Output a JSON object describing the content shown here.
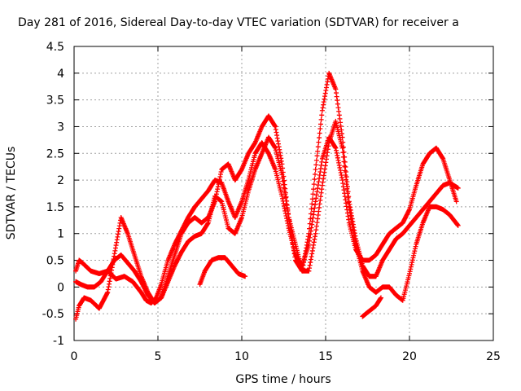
{
  "chart_data": {
    "type": "scatter",
    "title": "Day 281 of 2016, Sidereal Day-to-day VTEC variation (SDTVAR) for receiver a",
    "xlabel": "GPS time / hours",
    "ylabel": "SDTVAR / TECUs",
    "xlim": [
      0,
      25
    ],
    "ylim": [
      -1,
      4.5
    ],
    "xticks": [
      "0",
      "5",
      "10",
      "15",
      "20",
      "25"
    ],
    "yticks": [
      "-1",
      "-0.5",
      "0",
      "0.5",
      "1",
      "1.5",
      "2",
      "2.5",
      "3",
      "3.5",
      "4",
      "4.5"
    ],
    "grid": true,
    "marker": "+",
    "color": "#ff0000",
    "series": [
      {
        "x": [
          0.1,
          0.3,
          0.5,
          1.0,
          1.5,
          2.0,
          2.5,
          3.0,
          3.5,
          4.0,
          4.3,
          4.6,
          4.9,
          5.2,
          5.6,
          6.0,
          6.4,
          6.8,
          7.2,
          7.6,
          8.0,
          8.4,
          8.8,
          9.2,
          9.6,
          10.0,
          10.4,
          10.8,
          11.2,
          11.6,
          12.0,
          12.4,
          12.8,
          13.2,
          13.6,
          14.0,
          14.4,
          14.8,
          15.2,
          15.6,
          16.0,
          16.4,
          16.8,
          17.2,
          17.6,
          18.0,
          18.4,
          18.8,
          19.2,
          19.6,
          20.0,
          20.4,
          20.8,
          21.2,
          21.6,
          22.0,
          22.4,
          22.8
        ],
        "y": [
          0.3,
          0.5,
          0.45,
          0.3,
          0.25,
          0.3,
          0.15,
          0.2,
          0.1,
          -0.1,
          -0.25,
          -0.3,
          -0.2,
          0.05,
          0.5,
          0.8,
          1.05,
          1.3,
          1.5,
          1.65,
          1.8,
          2.0,
          1.95,
          1.6,
          1.3,
          1.6,
          2.0,
          2.5,
          2.7,
          2.5,
          2.2,
          1.7,
          1.1,
          0.6,
          0.4,
          0.8,
          1.6,
          2.4,
          2.8,
          2.6,
          2.0,
          1.2,
          0.7,
          0.5,
          0.5,
          0.6,
          0.8,
          1.0,
          1.1,
          1.2,
          1.45,
          1.9,
          2.3,
          2.5,
          2.6,
          2.4,
          2.0,
          1.6
        ]
      },
      {
        "x": [
          0.1,
          0.4,
          0.8,
          1.2,
          1.6,
          2.0,
          2.4,
          2.8,
          3.2,
          3.6,
          4.0,
          4.4,
          4.8,
          5.2,
          5.6,
          6.0,
          6.4,
          6.8,
          7.2,
          7.6,
          8.0,
          8.4,
          8.8,
          9.2,
          9.6,
          10.0,
          10.4,
          10.8,
          11.2,
          11.6,
          12.0,
          12.4,
          12.8,
          13.2,
          13.6,
          14.0,
          14.4,
          14.8,
          15.2,
          15.6,
          16.0,
          16.4,
          16.8,
          17.2,
          17.6,
          18.0,
          18.4,
          18.8,
          19.2,
          19.6,
          20.0,
          20.4,
          20.8,
          21.2,
          21.6,
          22.0,
          22.4,
          22.9
        ],
        "y": [
          0.1,
          0.05,
          0.0,
          0.0,
          0.1,
          0.3,
          0.5,
          0.6,
          0.45,
          0.3,
          0.1,
          -0.15,
          -0.3,
          -0.2,
          0.2,
          0.6,
          1.0,
          1.2,
          1.3,
          1.2,
          1.3,
          1.6,
          2.2,
          2.3,
          2.0,
          2.2,
          2.5,
          2.7,
          3.0,
          3.2,
          3.0,
          2.3,
          1.3,
          0.5,
          0.3,
          1.0,
          2.2,
          3.3,
          4.0,
          3.7,
          2.8,
          1.6,
          0.9,
          0.4,
          0.2,
          0.2,
          0.5,
          0.7,
          0.9,
          1.0,
          1.15,
          1.3,
          1.45,
          1.6,
          1.75,
          1.9,
          1.95,
          1.85
        ]
      },
      {
        "x": [
          0.1,
          0.3,
          0.6,
          1.0,
          1.5,
          2.0,
          2.8,
          3.2,
          3.6,
          4.0,
          4.4,
          4.8,
          5.2,
          5.6,
          6.0,
          6.4,
          6.8,
          7.2,
          7.6,
          8.0,
          8.4,
          8.8,
          9.2,
          9.6,
          10.0,
          10.4,
          10.8,
          11.2,
          11.6,
          12.0,
          12.4,
          12.8,
          13.2,
          13.6,
          14.0,
          14.4,
          14.8,
          15.2,
          15.6,
          16.0,
          16.4,
          16.8,
          17.2,
          17.6,
          18.0,
          18.4,
          18.8,
          19.2,
          19.6,
          20.0,
          20.4,
          20.8,
          21.2,
          21.6,
          22.0,
          22.4,
          22.9
        ],
        "y": [
          -0.6,
          -0.35,
          -0.2,
          -0.25,
          -0.4,
          -0.1,
          1.3,
          1.0,
          0.6,
          0.2,
          -0.1,
          -0.3,
          -0.2,
          0.1,
          0.4,
          0.65,
          0.85,
          0.95,
          1.0,
          1.2,
          1.7,
          1.6,
          1.1,
          1.0,
          1.3,
          1.8,
          2.2,
          2.5,
          2.8,
          2.6,
          2.1,
          1.3,
          0.8,
          0.3,
          0.3,
          1.0,
          1.9,
          2.7,
          3.1,
          2.6,
          1.5,
          0.8,
          0.3,
          0.0,
          -0.1,
          0.0,
          0.0,
          -0.15,
          -0.25,
          0.25,
          0.8,
          1.2,
          1.5,
          1.5,
          1.45,
          1.35,
          1.15
        ]
      },
      {
        "x": [
          7.5,
          7.8,
          8.2,
          8.6,
          9.0,
          9.4,
          9.8,
          10.2
        ],
        "y": [
          0.05,
          0.3,
          0.5,
          0.55,
          0.55,
          0.4,
          0.25,
          0.2
        ]
      },
      {
        "x": [
          17.2,
          17.6,
          18.0,
          18.3
        ],
        "y": [
          -0.55,
          -0.45,
          -0.35,
          -0.2
        ]
      }
    ]
  }
}
